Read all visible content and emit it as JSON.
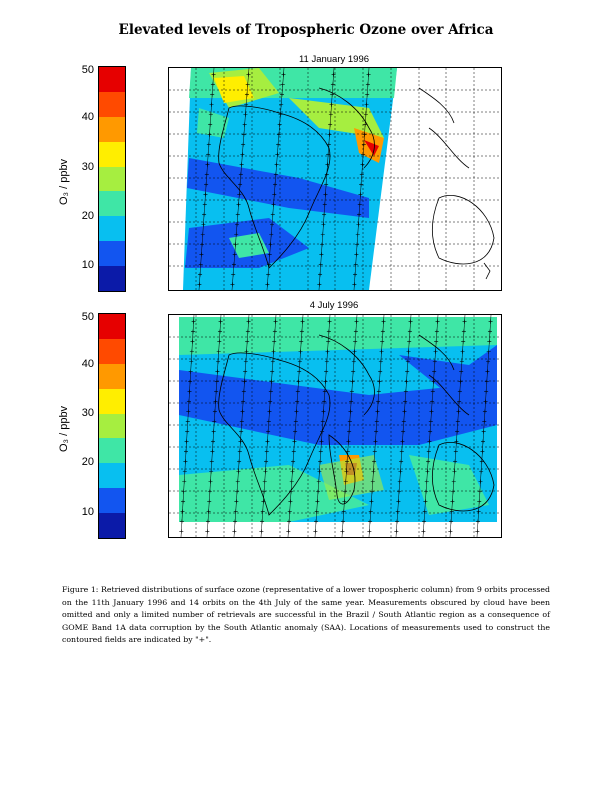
{
  "title": "Elevated levels of Tropospheric Ozone over Africa",
  "panels": [
    {
      "date": "11 January 1996"
    },
    {
      "date": "4 July 1996"
    }
  ],
  "colorbar": {
    "ticks": [
      "50",
      "40",
      "30",
      "20",
      "10"
    ],
    "label": "O₃ / ppbv",
    "colors": [
      "#e60000",
      "#ff4a00",
      "#ff9900",
      "#ffee00",
      "#a6ee40",
      "#3fe6a6",
      "#08bff0",
      "#1255f0",
      "#0b1aa8"
    ]
  },
  "caption": "Figure 1: Retrieved distributions of surface ozone (representative of a lower tropospheric column) from 9 orbits processed on the 11th January 1996 and 14 orbits on the 4th July of the same year. Measurements obscured by cloud have been omitted and only a limited number of retrievals are successful in the Brazil / South Atlantic region as a consequence of GOME Band 1A data corruption by the South Atlantic anomaly (SAA). Locations of measurements used to construct the contoured fields are indicated by \"+\"."
}
